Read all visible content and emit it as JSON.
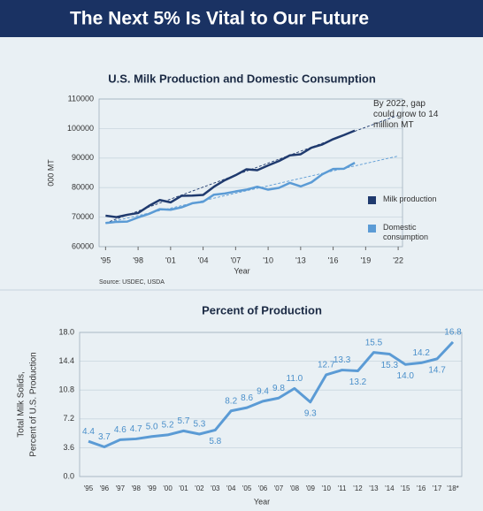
{
  "header": {
    "title": "The Next 5% Is Vital to Our Future"
  },
  "chart_data": [
    {
      "type": "line",
      "title": "U.S. Milk Production and Domestic Consumption",
      "xlabel": "Year",
      "ylabel": "000 MT",
      "source": "Source: USDEC, USDA",
      "annotation": "By 2022, gap could grow to 14 million MT",
      "x": [
        1995,
        1996,
        1997,
        1998,
        1999,
        2000,
        2001,
        2002,
        2003,
        2004,
        2005,
        2006,
        2007,
        2008,
        2009,
        2010,
        2011,
        2012,
        2013,
        2014,
        2015,
        2016,
        2017,
        2018
      ],
      "series": [
        {
          "name": "Milk production",
          "color": "#1f3a6e",
          "values": [
            70500,
            70000,
            70800,
            71400,
            73800,
            75800,
            75000,
            77200,
            77300,
            77500,
            80300,
            82500,
            84200,
            86200,
            85900,
            87500,
            89000,
            90900,
            91300,
            93500,
            94600,
            96400,
            97800,
            99300
          ]
        },
        {
          "name": "Domestic consumption",
          "color": "#5b9bd5",
          "values": [
            68000,
            68400,
            68500,
            69900,
            71100,
            72700,
            72500,
            73300,
            74700,
            75200,
            77600,
            78000,
            78700,
            79300,
            80300,
            79300,
            79900,
            81600,
            80400,
            81800,
            84500,
            86300,
            86400,
            88400
          ]
        }
      ],
      "trend_lines": [
        {
          "color": "#1f3a6e",
          "x": [
            1995,
            2022
          ],
          "values": [
            68000,
            104500
          ]
        },
        {
          "color": "#5b9bd5",
          "x": [
            1995,
            2022
          ],
          "values": [
            68000,
            90700
          ]
        }
      ],
      "xlim": [
        1994.4,
        2022.4
      ],
      "xticks": [
        {
          "value": 1995,
          "label": "'95"
        },
        {
          "value": 1998,
          "label": "'98"
        },
        {
          "value": 2001,
          "label": "'01"
        },
        {
          "value": 2004,
          "label": "'04"
        },
        {
          "value": 2007,
          "label": "'07"
        },
        {
          "value": 2010,
          "label": "'10"
        },
        {
          "value": 2013,
          "label": "'13"
        },
        {
          "value": 2016,
          "label": "'16"
        },
        {
          "value": 2019,
          "label": "'19"
        },
        {
          "value": 2022,
          "label": "'22"
        }
      ],
      "ylim": [
        60000,
        110000
      ],
      "yticks": [
        60000,
        70000,
        80000,
        90000,
        100000,
        110000
      ],
      "grid": true
    },
    {
      "type": "line",
      "title": "Percent of Production",
      "xlabel": "Year",
      "ylabel": [
        "Total Milk Solids,",
        "Percent of U.S. Production"
      ],
      "categories": [
        "'95",
        "'96",
        "'97",
        "'98",
        "'99",
        "'00",
        "'01",
        "'02",
        "'03",
        "'04",
        "'05",
        "'06",
        "'07",
        "'08",
        "'09",
        "'10",
        "'11",
        "'12",
        "'13",
        "'14",
        "'15",
        "'16",
        "'17",
        "'18*"
      ],
      "series": [
        {
          "color": "#5b9bd5",
          "values": [
            4.4,
            3.7,
            4.6,
            4.7,
            5.0,
            5.2,
            5.7,
            5.3,
            5.8,
            8.2,
            8.6,
            9.4,
            9.8,
            11.0,
            9.3,
            12.7,
            13.3,
            13.2,
            15.5,
            15.3,
            14.0,
            14.2,
            14.7,
            16.8
          ],
          "value_labels": [
            "4.4",
            "3.7",
            "4.6",
            "4.7",
            "5.0",
            "5.2",
            "5.7",
            "5.3",
            "5.8",
            "8.2",
            "8.6",
            "9.4",
            "9.8",
            "11.0",
            "9.3",
            "12.7",
            "13.3",
            "13.2",
            "15.5",
            "15.3",
            "14.0",
            "14.2",
            "14.7",
            "16.8"
          ]
        }
      ],
      "ylim": [
        0,
        18
      ],
      "yticks": [
        {
          "value": 0,
          "label": "0.0"
        },
        3.6,
        7.2,
        10.8,
        14.4,
        {
          "value": 18,
          "label": "18.0"
        }
      ],
      "grid": true
    }
  ]
}
